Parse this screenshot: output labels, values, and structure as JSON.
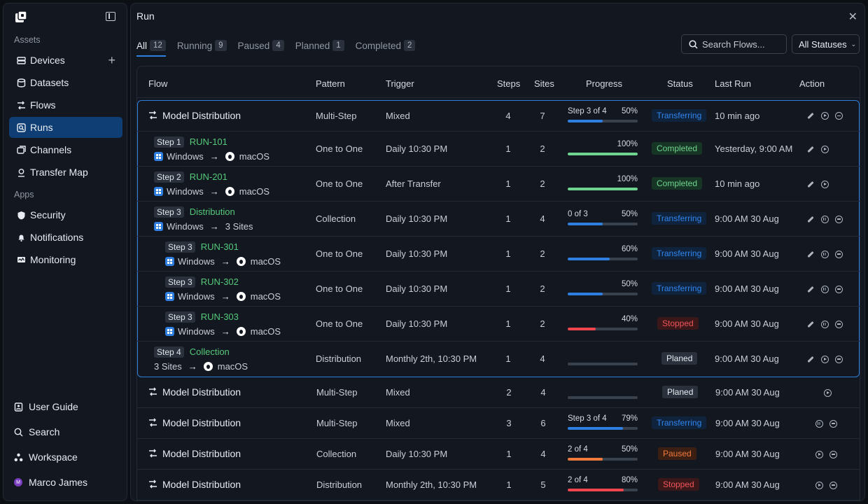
{
  "sidebar": {
    "sections": {
      "assets": "Assets",
      "apps": "Apps"
    },
    "assets_items": [
      {
        "label": "Devices"
      },
      {
        "label": "Datasets"
      },
      {
        "label": "Flows"
      },
      {
        "label": "Runs"
      },
      {
        "label": "Channels"
      },
      {
        "label": "Transfer Map"
      }
    ],
    "apps_items": [
      {
        "label": "Security"
      },
      {
        "label": "Notifications"
      },
      {
        "label": "Monitoring"
      }
    ],
    "bottom_items": [
      {
        "label": "User Guide"
      },
      {
        "label": "Search"
      },
      {
        "label": "Workspace"
      },
      {
        "label": "Marco James",
        "avatar_initial": "M"
      }
    ]
  },
  "header": {
    "title": "Run"
  },
  "tabs": [
    {
      "label": "All",
      "count": "12"
    },
    {
      "label": "Running",
      "count": "9"
    },
    {
      "label": "Paused",
      "count": "4"
    },
    {
      "label": "Planned",
      "count": "1"
    },
    {
      "label": "Completed",
      "count": "2"
    }
  ],
  "search": {
    "placeholder": "Search Flows..."
  },
  "status_filter": {
    "value": "All Statuses"
  },
  "table": {
    "columns": [
      "Flow",
      "Pattern",
      "Trigger",
      "Steps",
      "Sites",
      "Progress",
      "Status",
      "Last Run",
      "Action"
    ],
    "group_rows": [
      {
        "title": "Model Distribution",
        "pattern": "Multi-Step",
        "trigger": "Mixed",
        "steps": "4",
        "sites": "7",
        "progress_label": "Step 3 of 4",
        "progress_pct": "50%",
        "progress": 0.5,
        "color": "#2f7fe0",
        "status": "Transferring",
        "last_run": "10 min ago",
        "actions": [
          "edit",
          "play",
          "remove"
        ]
      },
      {
        "step": "Step 1",
        "run": "RUN-101",
        "from": "Windows",
        "to": "macOS",
        "pattern": "One to One",
        "trigger": "Daily 10:30 PM",
        "steps": "1",
        "sites": "2",
        "progress_label": "",
        "progress_pct": "100%",
        "progress": 1.0,
        "color": "#6fd48f",
        "status": "Completed",
        "last_run": "Yesterday, 9:00 AM",
        "actions": [
          "edit",
          "play"
        ]
      },
      {
        "step": "Step 2",
        "run": "RUN-201",
        "from": "Windows",
        "to": "macOS",
        "pattern": "One to One",
        "trigger": "After Transfer",
        "steps": "1",
        "sites": "2",
        "progress_label": "",
        "progress_pct": "100%",
        "progress": 1.0,
        "color": "#6fd48f",
        "status": "Completed",
        "last_run": "10 min ago",
        "actions": [
          "edit",
          "play"
        ]
      },
      {
        "step": "Step 3",
        "run": "Distribution",
        "from": "Windows",
        "to": "3 Sites",
        "pattern": "Collection",
        "trigger": "Daily 10:30 PM",
        "steps": "1",
        "sites": "4",
        "progress_label": "0 of 3",
        "progress_pct": "50%",
        "progress": 0.5,
        "color": "#2f7fe0",
        "status": "Transferring",
        "last_run": "9:00 AM 30 Aug",
        "actions": [
          "edit",
          "pause",
          "remove"
        ]
      },
      {
        "step": "Step 3",
        "run": "RUN-301",
        "from": "Windows",
        "to": "macOS",
        "pattern": "One to One",
        "trigger": "Daily 10:30 PM",
        "steps": "1",
        "sites": "2",
        "progress_label": "",
        "progress_pct": "60%",
        "progress": 0.6,
        "color": "#2f7fe0",
        "status": "Transferring",
        "last_run": "9:00 AM 30 Aug",
        "actions": [
          "edit",
          "pause",
          "remove"
        ],
        "indent": true
      },
      {
        "step": "Step 3",
        "run": "RUN-302",
        "from": "Windows",
        "to": "macOS",
        "pattern": "One to One",
        "trigger": "Daily 10:30 PM",
        "steps": "1",
        "sites": "2",
        "progress_label": "",
        "progress_pct": "50%",
        "progress": 0.5,
        "color": "#2f7fe0",
        "status": "Transferring",
        "last_run": "9:00 AM 30 Aug",
        "actions": [
          "edit",
          "pause",
          "remove"
        ],
        "indent": true
      },
      {
        "step": "Step 3",
        "run": "RUN-303",
        "from": "Windows",
        "to": "macOS",
        "pattern": "One to One",
        "trigger": "Daily 10:30 PM",
        "steps": "1",
        "sites": "2",
        "progress_label": "",
        "progress_pct": "40%",
        "progress": 0.4,
        "color": "#f0454c",
        "status": "Stopped",
        "last_run": "9:00 AM 30 Aug",
        "actions": [
          "edit",
          "pause",
          "remove"
        ],
        "indent": true
      },
      {
        "step": "Step 4",
        "run": "Collection",
        "from": "3 Sites",
        "to": "macOS",
        "pattern": "Distribution",
        "trigger": "Monthly 2th, 10:30 PM",
        "steps": "1",
        "sites": "4",
        "progress_label": "",
        "progress_pct": "",
        "progress": 0,
        "color": "#2f7fe0",
        "status": "Planed",
        "last_run": "9:00 AM 30 Aug",
        "actions": [
          "edit",
          "play",
          "remove"
        ]
      }
    ],
    "rows": [
      {
        "title": "Model Distribution",
        "pattern": "Multi-Step",
        "trigger": "Mixed",
        "steps": "2",
        "sites": "4",
        "progress_label": "",
        "progress_pct": "",
        "progress": 0,
        "color": "#2f7fe0",
        "status": "Planed",
        "last_run": "9:00 AM 30 Aug",
        "actions": [
          "play"
        ]
      },
      {
        "title": "Model Distribution",
        "pattern": "Multi-Step",
        "trigger": "Mixed",
        "steps": "3",
        "sites": "6",
        "progress_label": "Step 3 of 4",
        "progress_pct": "79%",
        "progress": 0.79,
        "color": "#2f7fe0",
        "status": "Transferring",
        "last_run": "9:00 AM 30 Aug",
        "actions": [
          "pause",
          "remove"
        ]
      },
      {
        "title": "Model Distribution",
        "pattern": "Collection",
        "trigger": "Daily 10:30 PM",
        "steps": "1",
        "sites": "4",
        "progress_label": "2 of 4",
        "progress_pct": "50%",
        "progress": 0.5,
        "color": "#f07a3a",
        "status": "Paused",
        "last_run": "9:00 AM 30 Aug",
        "actions": [
          "play",
          "remove"
        ]
      },
      {
        "title": "Model Distribution",
        "pattern": "Distribution",
        "trigger": "Monthly 2th, 10:30 PM",
        "steps": "1",
        "sites": "5",
        "progress_label": "2 of 4",
        "progress_pct": "80%",
        "progress": 0.8,
        "color": "#f0454c",
        "status": "Stopped",
        "last_run": "9:00 AM 30 Aug",
        "actions": [
          "play",
          "remove"
        ]
      }
    ]
  }
}
